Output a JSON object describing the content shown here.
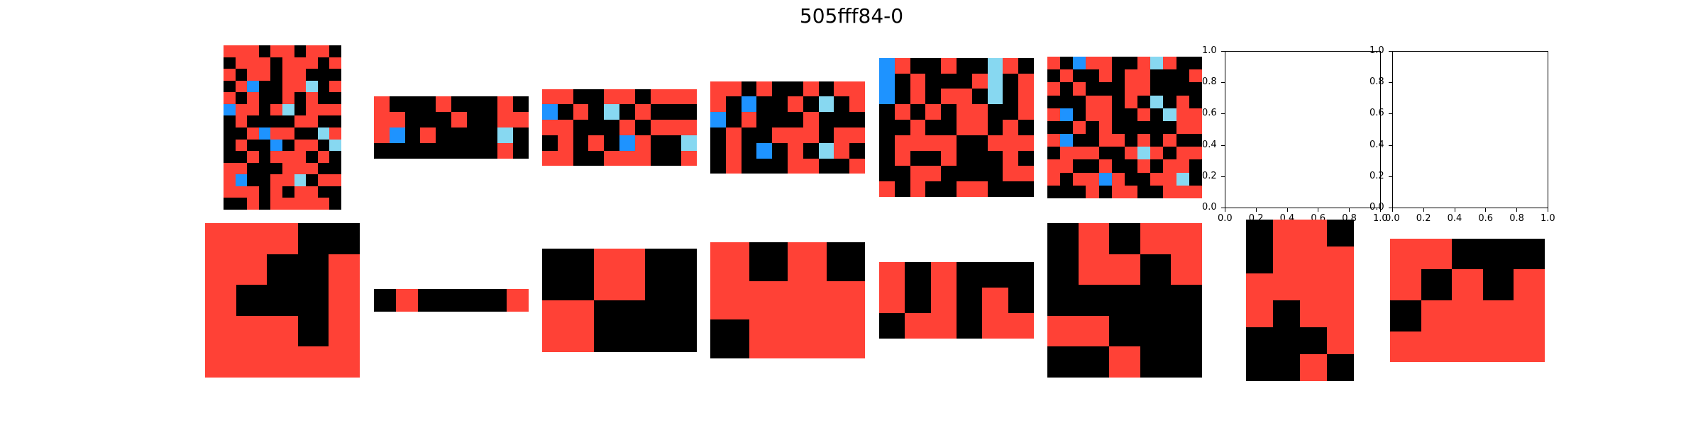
{
  "title": "505fff84-0",
  "palette": {
    "0": "#000000",
    "1": "#1E93FF",
    "2": "#FF4136",
    "8": "#87D8F1"
  },
  "rows": [
    [
      {
        "grid": [
          [
            2,
            2,
            2,
            0,
            2,
            2,
            0,
            2,
            2,
            0
          ],
          [
            0,
            2,
            2,
            2,
            0,
            2,
            2,
            2,
            0,
            2
          ],
          [
            2,
            0,
            2,
            2,
            0,
            2,
            2,
            0,
            0,
            0
          ],
          [
            0,
            2,
            1,
            0,
            0,
            2,
            2,
            8,
            0,
            2
          ],
          [
            2,
            0,
            2,
            0,
            0,
            2,
            0,
            2,
            0,
            0
          ],
          [
            1,
            2,
            2,
            0,
            2,
            8,
            0,
            2,
            2,
            2
          ],
          [
            0,
            2,
            0,
            0,
            0,
            0,
            2,
            2,
            0,
            0
          ],
          [
            0,
            0,
            2,
            1,
            2,
            2,
            0,
            0,
            8,
            2
          ],
          [
            0,
            2,
            0,
            0,
            1,
            0,
            2,
            2,
            0,
            8
          ],
          [
            0,
            0,
            2,
            0,
            2,
            2,
            2,
            0,
            2,
            0
          ],
          [
            2,
            2,
            0,
            0,
            0,
            2,
            2,
            2,
            0,
            0
          ],
          [
            2,
            1,
            0,
            0,
            2,
            2,
            8,
            0,
            2,
            2
          ],
          [
            2,
            2,
            2,
            0,
            2,
            0,
            2,
            2,
            0,
            0
          ],
          [
            0,
            0,
            2,
            0,
            2,
            2,
            2,
            2,
            2,
            0
          ]
        ]
      },
      {
        "grid": [
          [
            2,
            0,
            0,
            0,
            2,
            0,
            0,
            0,
            2,
            0
          ],
          [
            2,
            2,
            0,
            0,
            0,
            2,
            0,
            0,
            2,
            2
          ],
          [
            2,
            1,
            0,
            2,
            0,
            0,
            0,
            0,
            8,
            0
          ],
          [
            0,
            0,
            0,
            0,
            0,
            0,
            0,
            0,
            2,
            0
          ]
        ]
      },
      {
        "grid": [
          [
            2,
            2,
            0,
            0,
            2,
            2,
            0,
            2,
            2,
            2
          ],
          [
            1,
            0,
            2,
            0,
            8,
            0,
            2,
            0,
            0,
            0
          ],
          [
            2,
            2,
            0,
            0,
            0,
            2,
            0,
            2,
            2,
            2
          ],
          [
            0,
            2,
            0,
            2,
            0,
            1,
            2,
            0,
            0,
            8
          ],
          [
            2,
            2,
            0,
            0,
            2,
            2,
            2,
            0,
            0,
            2
          ]
        ]
      },
      {
        "grid": [
          [
            2,
            2,
            0,
            2,
            0,
            0,
            2,
            0,
            2,
            2
          ],
          [
            2,
            0,
            1,
            0,
            0,
            2,
            0,
            8,
            0,
            2
          ],
          [
            1,
            0,
            2,
            0,
            0,
            0,
            2,
            0,
            0,
            0
          ],
          [
            0,
            2,
            0,
            0,
            2,
            2,
            2,
            0,
            2,
            2
          ],
          [
            0,
            2,
            0,
            1,
            0,
            2,
            0,
            8,
            2,
            0
          ],
          [
            0,
            2,
            0,
            0,
            0,
            2,
            2,
            0,
            0,
            2
          ]
        ]
      },
      {
        "grid": [
          [
            1,
            2,
            0,
            0,
            2,
            0,
            0,
            8,
            2,
            0
          ],
          [
            1,
            0,
            2,
            0,
            0,
            0,
            2,
            8,
            0,
            2
          ],
          [
            1,
            0,
            2,
            0,
            2,
            2,
            0,
            8,
            0,
            2
          ],
          [
            0,
            2,
            0,
            2,
            0,
            2,
            2,
            0,
            0,
            2
          ],
          [
            0,
            0,
            2,
            0,
            0,
            2,
            2,
            0,
            2,
            0
          ],
          [
            0,
            2,
            2,
            2,
            2,
            0,
            0,
            2,
            2,
            2
          ],
          [
            0,
            2,
            0,
            0,
            2,
            0,
            0,
            0,
            2,
            0
          ],
          [
            0,
            0,
            2,
            2,
            0,
            0,
            0,
            0,
            2,
            2
          ],
          [
            2,
            0,
            2,
            0,
            0,
            2,
            2,
            0,
            0,
            0
          ]
        ]
      },
      {
        "grid": [
          [
            2,
            0,
            1,
            2,
            2,
            0,
            0,
            2,
            8,
            2,
            0,
            0
          ],
          [
            0,
            2,
            0,
            0,
            2,
            0,
            2,
            2,
            0,
            0,
            0,
            2
          ],
          [
            2,
            0,
            2,
            0,
            0,
            0,
            2,
            2,
            0,
            0,
            0,
            0
          ],
          [
            0,
            0,
            0,
            2,
            2,
            0,
            2,
            0,
            8,
            0,
            2,
            0
          ],
          [
            2,
            1,
            0,
            2,
            2,
            0,
            0,
            2,
            0,
            8,
            2,
            2
          ],
          [
            0,
            0,
            2,
            0,
            2,
            0,
            0,
            0,
            0,
            0,
            2,
            2
          ],
          [
            2,
            1,
            0,
            0,
            2,
            2,
            0,
            2,
            0,
            2,
            0,
            0
          ],
          [
            0,
            2,
            2,
            2,
            0,
            0,
            2,
            8,
            2,
            0,
            2,
            2
          ],
          [
            2,
            2,
            0,
            0,
            2,
            0,
            0,
            2,
            0,
            2,
            2,
            0
          ],
          [
            2,
            0,
            2,
            2,
            1,
            2,
            0,
            0,
            2,
            2,
            8,
            0
          ],
          [
            0,
            0,
            0,
            2,
            0,
            2,
            2,
            0,
            0,
            2,
            2,
            2
          ]
        ]
      },
      {
        "empty": true
      },
      {
        "empty": true
      }
    ],
    [
      {
        "grid": [
          [
            2,
            2,
            2,
            0,
            0
          ],
          [
            2,
            2,
            0,
            0,
            2
          ],
          [
            2,
            0,
            0,
            0,
            2
          ],
          [
            2,
            2,
            2,
            0,
            2
          ],
          [
            2,
            2,
            2,
            2,
            2
          ]
        ]
      },
      {
        "grid": [
          [
            0,
            2,
            0,
            0,
            0,
            0,
            2
          ]
        ]
      },
      {
        "grid": [
          [
            0,
            2,
            0
          ],
          [
            2,
            0,
            0
          ]
        ]
      },
      {
        "grid": [
          [
            2,
            0,
            2,
            0
          ],
          [
            2,
            2,
            2,
            2
          ],
          [
            0,
            2,
            2,
            2
          ]
        ]
      },
      {
        "grid": [
          [
            2,
            0,
            2,
            0,
            0,
            0
          ],
          [
            2,
            0,
            2,
            0,
            2,
            0
          ],
          [
            0,
            2,
            2,
            0,
            2,
            2
          ]
        ]
      },
      {
        "grid": [
          [
            0,
            2,
            0,
            2,
            2
          ],
          [
            0,
            2,
            2,
            0,
            2
          ],
          [
            0,
            0,
            0,
            0,
            0
          ],
          [
            2,
            2,
            0,
            0,
            0
          ],
          [
            0,
            0,
            2,
            0,
            0
          ]
        ]
      },
      {
        "grid": [
          [
            0,
            2,
            2,
            0
          ],
          [
            0,
            2,
            2,
            2
          ],
          [
            2,
            2,
            2,
            2
          ],
          [
            2,
            0,
            2,
            2
          ],
          [
            0,
            0,
            0,
            2
          ],
          [
            0,
            0,
            2,
            0
          ]
        ]
      },
      {
        "grid": [
          [
            2,
            2,
            0,
            0,
            0
          ],
          [
            2,
            0,
            2,
            0,
            2
          ],
          [
            0,
            2,
            2,
            2,
            2
          ],
          [
            2,
            2,
            2,
            2,
            2
          ]
        ]
      }
    ]
  ],
  "empty_axes": {
    "xticks": [
      "0.0",
      "0.2",
      "0.4",
      "0.6",
      "0.8",
      "1.0"
    ],
    "yticks": [
      "0.0",
      "0.2",
      "0.4",
      "0.6",
      "0.8",
      "1.0"
    ]
  }
}
